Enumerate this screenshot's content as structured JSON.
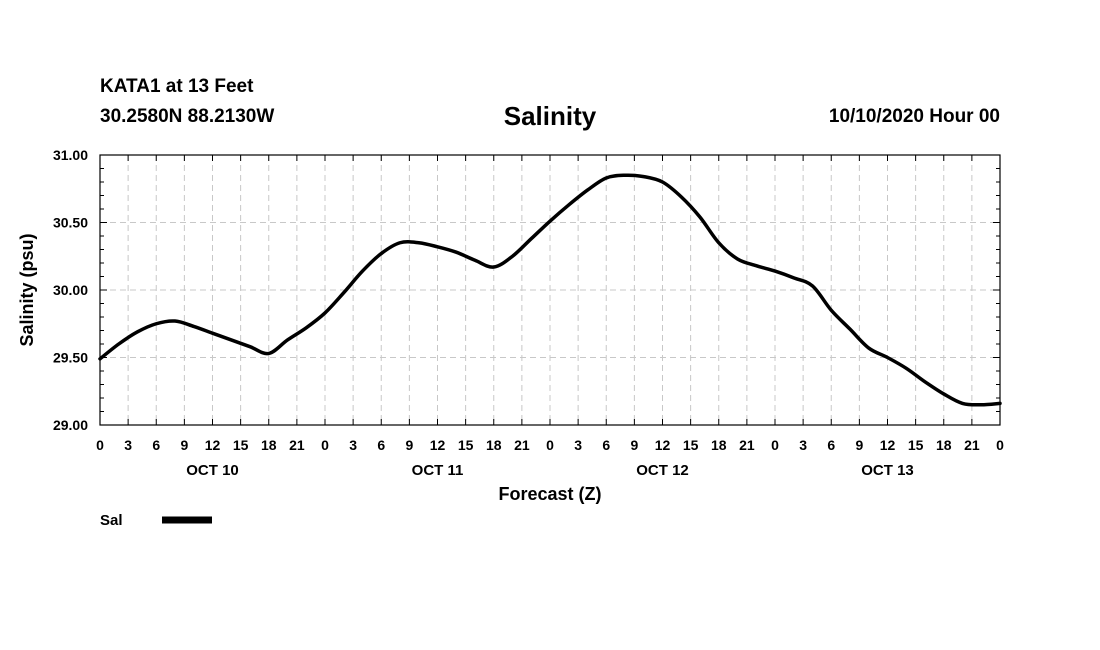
{
  "header": {
    "station": "KATA1 at 13 Feet",
    "coords": "30.2580N 88.2130W",
    "run": "10/10/2020 Hour 00"
  },
  "chart_data": {
    "type": "line",
    "title": "Salinity",
    "xlabel": "Forecast (Z)",
    "ylabel": "Salinity (psu)",
    "ylim": [
      29.0,
      31.0
    ],
    "xlim_hours": [
      0,
      96
    ],
    "y_ticks": [
      "29.00",
      "29.50",
      "30.00",
      "30.50",
      "31.00"
    ],
    "x_tick_labels": [
      "0",
      "3",
      "6",
      "9",
      "12",
      "15",
      "18",
      "21",
      "0",
      "3",
      "6",
      "9",
      "12",
      "15",
      "18",
      "21",
      "0",
      "3",
      "6",
      "9",
      "12",
      "15",
      "18",
      "21",
      "0",
      "3",
      "6",
      "9",
      "12",
      "15",
      "18",
      "21",
      "0"
    ],
    "day_labels": [
      {
        "label": "OCT 10",
        "hour": 12
      },
      {
        "label": "OCT 11",
        "hour": 36
      },
      {
        "label": "OCT 12",
        "hour": 60
      },
      {
        "label": "OCT 13",
        "hour": 84
      }
    ],
    "grid": true,
    "legend_position": "bottom-left",
    "series": [
      {
        "name": "Sal",
        "color": "#000000",
        "x_hours": [
          0,
          2,
          4,
          6,
          8,
          10,
          12,
          14,
          16,
          18,
          20,
          22,
          24,
          26,
          28,
          30,
          32,
          34,
          36,
          38,
          40,
          42,
          44,
          46,
          48,
          50,
          52,
          54,
          56,
          58,
          60,
          62,
          64,
          66,
          68,
          70,
          72,
          74,
          76,
          78,
          80,
          82,
          84,
          86,
          88,
          90,
          92,
          94,
          96
        ],
        "values": [
          29.49,
          29.6,
          29.69,
          29.75,
          29.77,
          29.73,
          29.68,
          29.63,
          29.58,
          29.53,
          29.63,
          29.72,
          29.83,
          29.98,
          30.14,
          30.27,
          30.35,
          30.35,
          30.32,
          30.28,
          30.22,
          30.17,
          30.25,
          30.38,
          30.51,
          30.63,
          30.74,
          30.83,
          30.85,
          30.84,
          30.8,
          30.69,
          30.54,
          30.35,
          30.23,
          30.18,
          30.14,
          30.09,
          30.03,
          29.85,
          29.71,
          29.57,
          29.5,
          29.42,
          29.32,
          29.23,
          29.16,
          29.15,
          29.16
        ]
      }
    ]
  }
}
